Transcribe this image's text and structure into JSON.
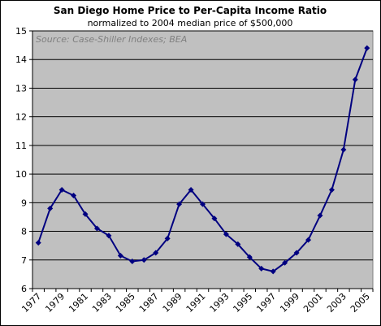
{
  "chart_data": {
    "type": "line",
    "title": "San Diego Home Price to Per-Capita Income Ratio",
    "subtitle": "normalized to 2004 median price of $500,000",
    "annotation": "Source: Case-Shiller Indexes; BEA",
    "xlabel": "",
    "ylabel": "",
    "ylim": [
      6,
      15
    ],
    "yticks": [
      6,
      7,
      8,
      9,
      10,
      11,
      12,
      13,
      14,
      15
    ],
    "xlim": [
      1977,
      2005
    ],
    "xticks": [
      "1977",
      "1979",
      "1981",
      "1983",
      "1985",
      "1987",
      "1989",
      "1991",
      "1993",
      "1995",
      "1997",
      "1999",
      "2001",
      "2003",
      "2005"
    ],
    "grid": true,
    "legend": "none",
    "series": [
      {
        "x": [
          1977,
          1978,
          1979,
          1980,
          1981,
          1982,
          1983,
          1984,
          1985,
          1986,
          1987,
          1988,
          1989,
          1990,
          1991,
          1992,
          1993,
          1994,
          1995,
          1996,
          1997,
          1998,
          1999,
          2000,
          2001,
          2002,
          2003,
          2004,
          2005
        ],
        "values": [
          7.6,
          8.8,
          9.45,
          9.25,
          8.6,
          8.1,
          7.85,
          7.15,
          6.95,
          7.0,
          7.25,
          7.75,
          8.95,
          9.45,
          8.95,
          8.45,
          7.9,
          7.55,
          7.1,
          6.7,
          6.6,
          6.9,
          7.25,
          7.7,
          8.55,
          9.45,
          10.85,
          13.3,
          14.4
        ]
      }
    ],
    "colors": {
      "line": "#000080",
      "plot_background": "#c0c0c0",
      "gridline": "#000000"
    }
  }
}
